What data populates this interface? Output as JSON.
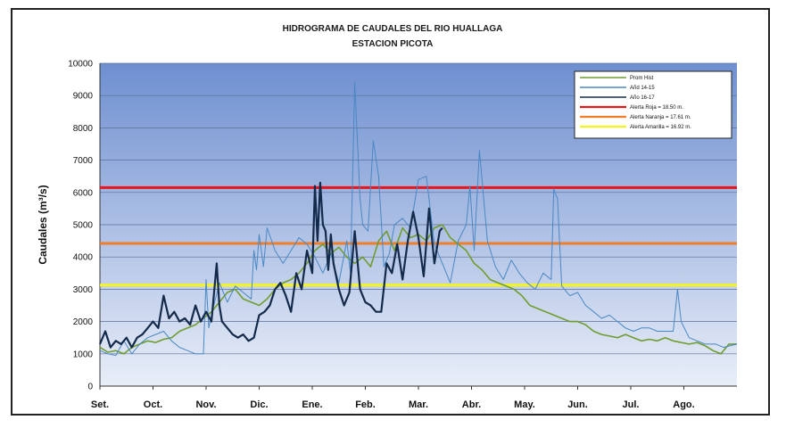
{
  "chart_data": {
    "type": "line",
    "title": "HIDROGRAMA DE CAUDALES DEL RIO HUALLAGA",
    "subtitle": "ESTACION PICOTA",
    "ylabel": "Caudales (m³/s)",
    "xlabel": "",
    "ylim": [
      0,
      10000
    ],
    "yticks": [
      0,
      1000,
      2000,
      3000,
      4000,
      5000,
      6000,
      7000,
      8000,
      9000,
      10000
    ],
    "x_categories": [
      "Set.",
      "Oct.",
      "Nov.",
      "Dic.",
      "Ene.",
      "Feb.",
      "Mar.",
      "Abr.",
      "May.",
      "Jun.",
      "Jul.",
      "Ago."
    ],
    "grid": true,
    "legend_position": "top-right",
    "background_gradient": [
      "#6e8fd0",
      "#e9eef8"
    ],
    "thresholds": [
      {
        "name": "Alerta Roja = 18.50 m.",
        "value": 6150,
        "color": "#e8141e"
      },
      {
        "name": "Alerta Naranja = 17.61 m.",
        "value": 4420,
        "color": "#ef7d2a"
      },
      {
        "name": "Alerta Amarilla = 16.92 m.",
        "value": 3130,
        "color": "#f5f51c"
      }
    ],
    "series": [
      {
        "name": "Prom Hist",
        "color": "#6f9d2f",
        "x": [
          0.0,
          0.15,
          0.3,
          0.45,
          0.6,
          0.75,
          0.9,
          1.05,
          1.2,
          1.35,
          1.5,
          1.65,
          1.8,
          1.95,
          2.1,
          2.25,
          2.4,
          2.55,
          2.7,
          2.85,
          3.0,
          3.15,
          3.3,
          3.45,
          3.6,
          3.75,
          3.9,
          4.05,
          4.2,
          4.35,
          4.5,
          4.65,
          4.8,
          4.95,
          5.1,
          5.25,
          5.4,
          5.55,
          5.7,
          5.85,
          6.0,
          6.15,
          6.3,
          6.45,
          6.6,
          6.75,
          6.9,
          7.05,
          7.2,
          7.35,
          7.5,
          7.65,
          7.8,
          7.95,
          8.1,
          8.25,
          8.4,
          8.55,
          8.7,
          8.85,
          9.0,
          9.15,
          9.3,
          9.45,
          9.6,
          9.75,
          9.9,
          10.05,
          10.2,
          10.35,
          10.5,
          10.65,
          10.8,
          10.95,
          11.1,
          11.25,
          11.4,
          11.55,
          11.7,
          11.85,
          12.0
        ],
        "values": [
          1200,
          1050,
          1100,
          1000,
          1200,
          1300,
          1400,
          1350,
          1450,
          1500,
          1700,
          1800,
          1900,
          2100,
          2300,
          2600,
          2900,
          3000,
          2700,
          2600,
          2500,
          2700,
          3000,
          3200,
          3300,
          3500,
          3800,
          4200,
          4400,
          4100,
          4300,
          4000,
          3800,
          4000,
          3700,
          4500,
          4800,
          4200,
          4900,
          4600,
          4700,
          4500,
          4900,
          5000,
          4600,
          4400,
          4200,
          3800,
          3600,
          3300,
          3200,
          3100,
          3000,
          2800,
          2500,
          2400,
          2300,
          2200,
          2100,
          2000,
          2000,
          1900,
          1700,
          1600,
          1550,
          1500,
          1600,
          1500,
          1400,
          1450,
          1400,
          1500,
          1400,
          1350,
          1300,
          1350,
          1250,
          1100,
          1000,
          1300,
          1300
        ]
      },
      {
        "name": "Añd 14-15",
        "color": "#4a88c4",
        "x": [
          0.0,
          0.15,
          0.3,
          0.45,
          0.6,
          0.75,
          0.9,
          1.05,
          1.2,
          1.35,
          1.5,
          1.65,
          1.8,
          1.95,
          2.0,
          2.05,
          2.1,
          2.25,
          2.4,
          2.55,
          2.7,
          2.85,
          2.9,
          2.95,
          3.0,
          3.08,
          3.15,
          3.3,
          3.45,
          3.6,
          3.75,
          3.9,
          4.05,
          4.2,
          4.35,
          4.5,
          4.65,
          4.72,
          4.8,
          4.9,
          4.95,
          5.05,
          5.15,
          5.25,
          5.35,
          5.45,
          5.55,
          5.7,
          5.85,
          6.0,
          6.15,
          6.3,
          6.45,
          6.6,
          6.75,
          6.9,
          6.97,
          7.05,
          7.15,
          7.3,
          7.45,
          7.6,
          7.75,
          7.9,
          8.05,
          8.2,
          8.35,
          8.5,
          8.55,
          8.62,
          8.7,
          8.85,
          9.0,
          9.15,
          9.3,
          9.45,
          9.6,
          9.75,
          9.9,
          10.05,
          10.2,
          10.35,
          10.5,
          10.65,
          10.8,
          10.88,
          10.95,
          11.1,
          11.25,
          11.4,
          11.5,
          11.6,
          11.75,
          12.0
        ],
        "values": [
          1100,
          1000,
          950,
          1400,
          1000,
          1300,
          1500,
          1600,
          1700,
          1400,
          1200,
          1100,
          1000,
          1000,
          3300,
          1800,
          2200,
          3200,
          2600,
          3100,
          2900,
          2700,
          4200,
          3600,
          4700,
          3700,
          4900,
          4200,
          3800,
          4200,
          4600,
          4400,
          4000,
          3500,
          4100,
          3200,
          4500,
          3500,
          9400,
          5800,
          5000,
          4800,
          7600,
          6500,
          3700,
          4100,
          5000,
          5200,
          4900,
          6400,
          6500,
          4400,
          3800,
          3200,
          4500,
          5000,
          6200,
          4200,
          7300,
          4500,
          3700,
          3300,
          3900,
          3500,
          3200,
          3000,
          3500,
          3300,
          6100,
          5800,
          3100,
          2800,
          2900,
          2500,
          2300,
          2100,
          2200,
          2000,
          1800,
          1700,
          1800,
          1800,
          1700,
          1700,
          1700,
          3000,
          2000,
          1500,
          1400,
          1300,
          1300,
          1300,
          1200,
          1300
        ]
      },
      {
        "name": "Año 16-17",
        "color": "#142a4a",
        "x": [
          0.0,
          0.1,
          0.2,
          0.3,
          0.4,
          0.5,
          0.6,
          0.7,
          0.8,
          0.9,
          1.0,
          1.1,
          1.2,
          1.3,
          1.4,
          1.5,
          1.6,
          1.7,
          1.8,
          1.9,
          2.0,
          2.1,
          2.2,
          2.25,
          2.3,
          2.4,
          2.5,
          2.6,
          2.7,
          2.8,
          2.9,
          3.0,
          3.1,
          3.2,
          3.3,
          3.4,
          3.5,
          3.6,
          3.7,
          3.8,
          3.9,
          4.0,
          4.05,
          4.1,
          4.15,
          4.2,
          4.25,
          4.3,
          4.35,
          4.4,
          4.5,
          4.6,
          4.7,
          4.8,
          4.9,
          5.0,
          5.1,
          5.2,
          5.3,
          5.4,
          5.5,
          5.6,
          5.7,
          5.8,
          5.9,
          6.0,
          6.1,
          6.2,
          6.3,
          6.4,
          6.45
        ],
        "values": [
          1300,
          1700,
          1200,
          1400,
          1300,
          1500,
          1200,
          1500,
          1600,
          1800,
          2000,
          1800,
          2800,
          2100,
          2300,
          2000,
          2100,
          1900,
          2500,
          2000,
          2300,
          2000,
          3800,
          2500,
          2000,
          1800,
          1600,
          1500,
          1600,
          1400,
          1500,
          2200,
          2300,
          2500,
          3000,
          3200,
          2800,
          2300,
          3500,
          3000,
          4200,
          3500,
          6200,
          4500,
          6300,
          5000,
          4800,
          3600,
          4700,
          3800,
          3000,
          2500,
          2900,
          4800,
          3000,
          2600,
          2500,
          2300,
          2300,
          3800,
          3500,
          4400,
          3300,
          4500,
          5400,
          4600,
          3400,
          5500,
          3800,
          4800,
          4900
        ]
      }
    ]
  }
}
